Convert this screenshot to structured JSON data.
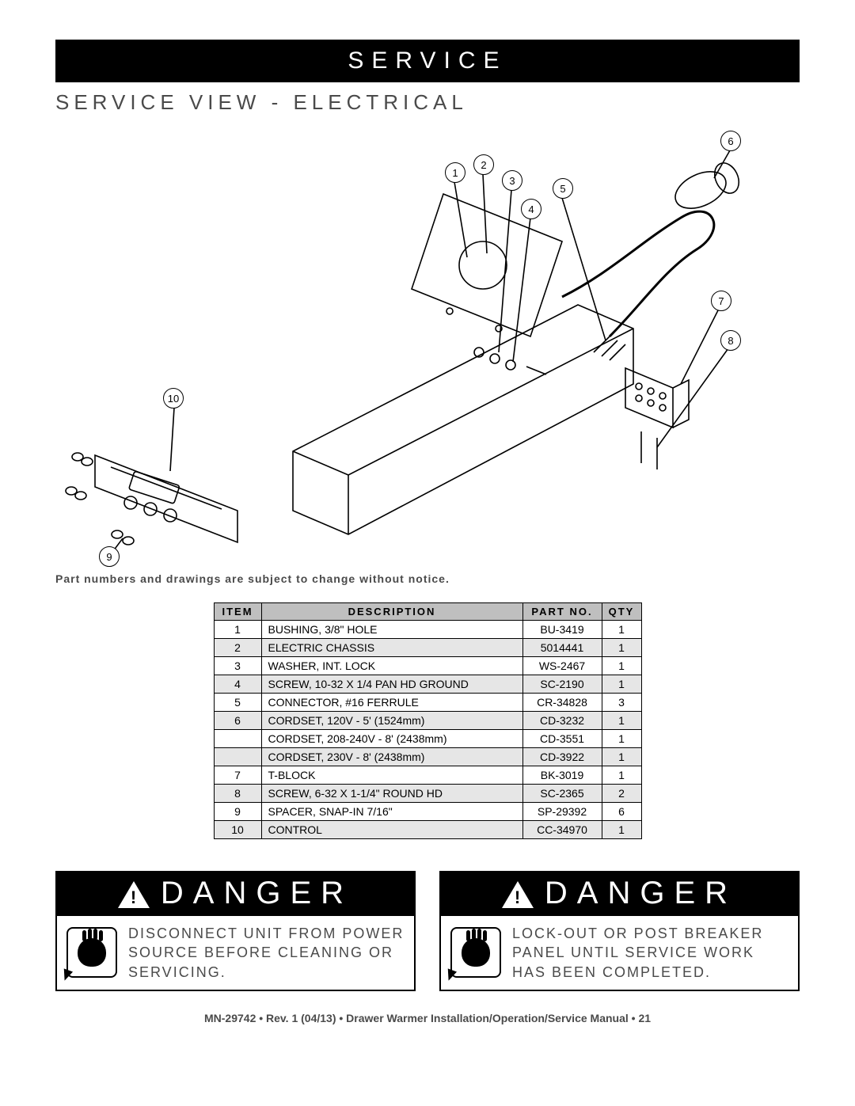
{
  "header": {
    "title": "SERVICE"
  },
  "subheader": "SERVICE VIEW - ELECTRICAL",
  "callouts": {
    "c1": "1",
    "c2": "2",
    "c3": "3",
    "c4": "4",
    "c5": "5",
    "c6": "6",
    "c7": "7",
    "c8": "8",
    "c9": "9",
    "c10": "10"
  },
  "notice": "Part numbers and drawings are subject to change without notice.",
  "table": {
    "headers": {
      "item": "ITEM",
      "desc": "DESCRIPTION",
      "part": "PART NO.",
      "qty": "QTY"
    },
    "rows": [
      {
        "item": "1",
        "desc": "BUSHING, 3/8\" HOLE",
        "part": "BU-3419",
        "qty": "1",
        "shade": false
      },
      {
        "item": "2",
        "desc": "ELECTRIC CHASSIS",
        "part": "5014441",
        "qty": "1",
        "shade": true
      },
      {
        "item": "3",
        "desc": "WASHER, INT. LOCK",
        "part": "WS-2467",
        "qty": "1",
        "shade": false
      },
      {
        "item": "4",
        "desc": "SCREW, 10-32 X 1/4 PAN HD GROUND",
        "part": "SC-2190",
        "qty": "1",
        "shade": true
      },
      {
        "item": "5",
        "desc": "CONNECTOR, #16 FERRULE",
        "part": "CR-34828",
        "qty": "3",
        "shade": false
      },
      {
        "item": "6",
        "desc": "CORDSET, 120V - 5' (1524mm)",
        "part": "CD-3232",
        "qty": "1",
        "shade": true
      },
      {
        "item": "",
        "desc": "CORDSET, 208-240V - 8' (2438mm)",
        "part": "CD-3551",
        "qty": "1",
        "shade": false
      },
      {
        "item": "",
        "desc": "CORDSET, 230V - 8' (2438mm)",
        "part": "CD-3922",
        "qty": "1",
        "shade": true
      },
      {
        "item": "7",
        "desc": "T-BLOCK",
        "part": "BK-3019",
        "qty": "1",
        "shade": false
      },
      {
        "item": "8",
        "desc": "SCREW, 6-32 X 1-1/4\" ROUND HD",
        "part": "SC-2365",
        "qty": "2",
        "shade": true
      },
      {
        "item": "9",
        "desc": "SPACER, SNAP-IN 7/16\"",
        "part": "SP-29392",
        "qty": "6",
        "shade": false
      },
      {
        "item": "10",
        "desc": "CONTROL",
        "part": "CC-34970",
        "qty": "1",
        "shade": true
      }
    ]
  },
  "danger": {
    "label": "DANGER",
    "left": "DISCONNECT UNIT FROM POWER SOURCE BEFORE CLEANING OR SERVICING.",
    "right": "LOCK-OUT OR POST BREAKER PANEL UNTIL SERVICE WORK HAS BEEN COMPLETED."
  },
  "footer": "MN-29742 • Rev. 1 (04/13) • Drawer Warmer Installation/Operation/Service Manual • 21",
  "colors": {
    "black": "#000000",
    "grey_text": "#4a4a4a",
    "header_fill": "#bfbfbf",
    "row_shade": "#e6e6e6",
    "white": "#ffffff"
  }
}
